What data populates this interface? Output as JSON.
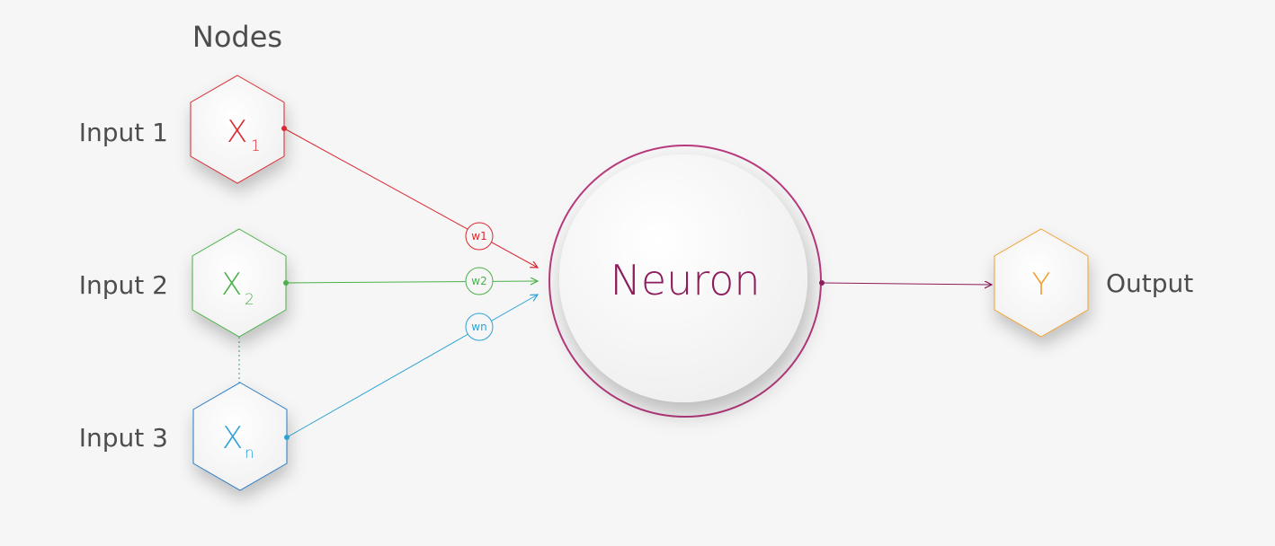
{
  "title": "Nodes",
  "inputs": [
    {
      "label": "Input 1",
      "symbol": "X",
      "subscript": "1",
      "color": "#d9282f",
      "weight": "w1"
    },
    {
      "label": "Input 2",
      "symbol": "X",
      "subscript": "2",
      "color": "#4cb04a",
      "weight": "w2"
    },
    {
      "label": "Input 3",
      "symbol": "X",
      "subscript": "n",
      "color": "#2ba3d6",
      "weight": "wn"
    }
  ],
  "neuron": {
    "label": "Neuron",
    "color": "#8c1d5c",
    "ring_color": "#b83a7e"
  },
  "output": {
    "symbol": "Y",
    "label": "Output",
    "color": "#f0a030"
  },
  "colors": {
    "background": "#f6f6f6",
    "label": "#4d4d4d",
    "dotted_link": "#3d9a7a"
  }
}
